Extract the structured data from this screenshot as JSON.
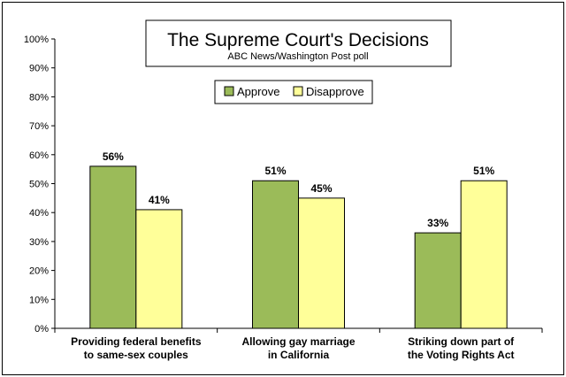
{
  "chart_data": {
    "type": "bar",
    "title": "The Supreme Court's Decisions",
    "subtitle": "ABC News/Washington  Post poll",
    "categories": [
      [
        "Providing federal benefits",
        "to same-sex couples"
      ],
      [
        "Allowing gay marriage",
        "in California"
      ],
      [
        "Striking down part of",
        "the Voting Rights Act"
      ]
    ],
    "series": [
      {
        "name": "Approve",
        "values": [
          56,
          51,
          33
        ],
        "labels": [
          "56%",
          "51%",
          "33%"
        ],
        "color": "#9bbb59"
      },
      {
        "name": "Disapprove",
        "values": [
          41,
          45,
          51
        ],
        "labels": [
          "41%",
          "45%",
          "51%"
        ],
        "color": "#ffff99"
      }
    ],
    "ylim": [
      0,
      100
    ],
    "yticks": [
      0,
      10,
      20,
      30,
      40,
      50,
      60,
      70,
      80,
      90,
      100
    ],
    "ytick_labels": [
      "0%",
      "10%",
      "20%",
      "30%",
      "40%",
      "50%",
      "60%",
      "70%",
      "80%",
      "90%",
      "100%"
    ],
    "xlabel": "",
    "ylabel": "",
    "legend_position": "top-center",
    "grid": false
  },
  "colors": {
    "border": "#000000",
    "approve": "#9bbb59",
    "disapprove": "#ffff99"
  }
}
